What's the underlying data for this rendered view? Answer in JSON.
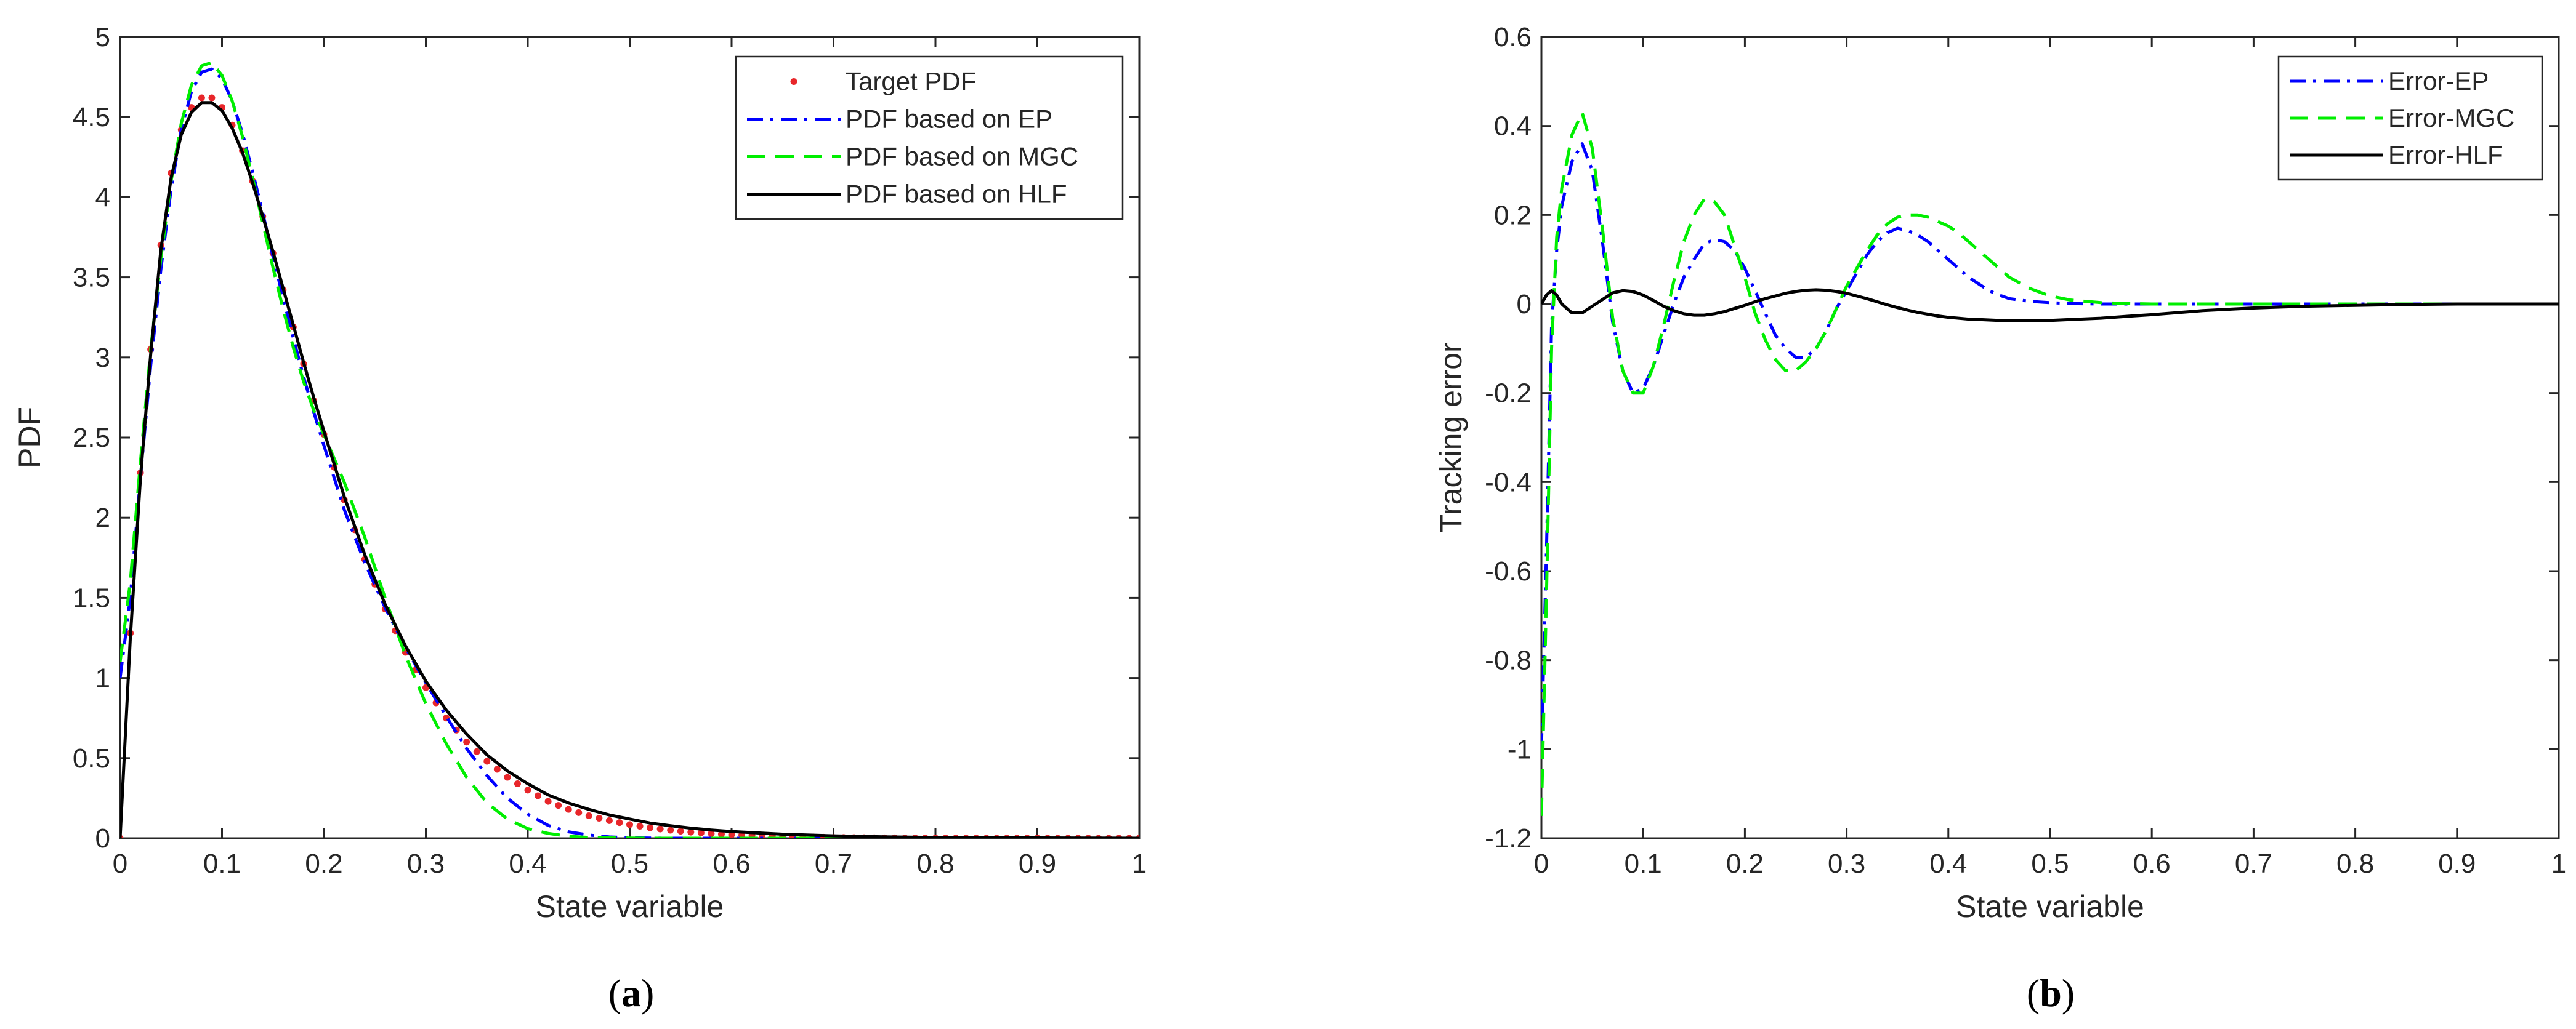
{
  "chart_data": [
    {
      "panel": "(a)",
      "type": "line",
      "title": "",
      "xlabel": "State variable",
      "ylabel": "PDF",
      "xlim": [
        0,
        1
      ],
      "ylim": [
        0,
        5
      ],
      "xticks": [
        0,
        0.1,
        0.2,
        0.3,
        0.4,
        0.5,
        0.6,
        0.7,
        0.8,
        0.9,
        1
      ],
      "yticks": [
        0,
        0.5,
        1,
        1.5,
        2,
        2.5,
        3,
        3.5,
        4,
        4.5,
        5
      ],
      "grid": false,
      "legend_position": "top-right",
      "x": [
        0,
        0.01,
        0.02,
        0.03,
        0.04,
        0.05,
        0.06,
        0.07,
        0.08,
        0.09,
        0.1,
        0.11,
        0.12,
        0.13,
        0.14,
        0.15,
        0.16,
        0.17,
        0.18,
        0.19,
        0.2,
        0.22,
        0.24,
        0.26,
        0.28,
        0.3,
        0.32,
        0.34,
        0.36,
        0.38,
        0.4,
        0.42,
        0.44,
        0.46,
        0.48,
        0.5,
        0.52,
        0.54,
        0.56,
        0.58,
        0.6,
        0.65,
        0.7,
        0.75,
        0.8,
        0.85,
        0.9,
        0.95,
        1.0
      ],
      "series": [
        {
          "name": "Target PDF",
          "style": "dots",
          "color": "#e8262a",
          "values": [
            0,
            1.28,
            2.28,
            3.05,
            3.7,
            4.15,
            4.42,
            4.56,
            4.62,
            4.62,
            4.56,
            4.45,
            4.29,
            4.1,
            3.88,
            3.65,
            3.42,
            3.19,
            2.96,
            2.73,
            2.52,
            2.11,
            1.74,
            1.43,
            1.16,
            0.94,
            0.75,
            0.6,
            0.48,
            0.38,
            0.3,
            0.23,
            0.18,
            0.14,
            0.11,
            0.085,
            0.065,
            0.05,
            0.038,
            0.029,
            0.022,
            0.011,
            0.005,
            0.0025,
            0.0012,
            0.0006,
            0.0003,
            0.0001,
            0
          ]
        },
        {
          "name": "PDF based on EP",
          "style": "dashdot",
          "color": "#0000ff",
          "values": [
            1.0,
            1.5,
            2.25,
            2.95,
            3.55,
            4.05,
            4.42,
            4.66,
            4.78,
            4.8,
            4.74,
            4.6,
            4.4,
            4.16,
            3.9,
            3.63,
            3.37,
            3.12,
            2.88,
            2.66,
            2.45,
            2.05,
            1.72,
            1.44,
            1.19,
            0.97,
            0.76,
            0.56,
            0.39,
            0.25,
            0.15,
            0.08,
            0.04,
            0.02,
            0.008,
            0.003,
            0.001,
            0,
            0,
            0,
            0,
            0,
            0,
            0,
            0,
            0,
            0,
            0,
            0
          ]
        },
        {
          "name": "PDF based on MGC",
          "style": "dashed",
          "color": "#00ee00",
          "values": [
            1.1,
            1.6,
            2.35,
            3.05,
            3.62,
            4.1,
            4.46,
            4.7,
            4.82,
            4.84,
            4.76,
            4.6,
            4.38,
            4.12,
            3.84,
            3.56,
            3.3,
            3.06,
            2.85,
            2.67,
            2.52,
            2.22,
            1.88,
            1.5,
            1.14,
            0.84,
            0.59,
            0.38,
            0.22,
            0.12,
            0.06,
            0.03,
            0.012,
            0.005,
            0.002,
            0.001,
            0,
            0,
            0,
            0,
            0,
            0,
            0,
            0,
            0,
            0,
            0,
            0,
            0
          ]
        },
        {
          "name": "PDF based on HLF",
          "style": "solid",
          "color": "#000000",
          "values": [
            0,
            1.25,
            2.25,
            3.02,
            3.67,
            4.12,
            4.39,
            4.53,
            4.59,
            4.59,
            4.54,
            4.43,
            4.28,
            4.09,
            3.88,
            3.66,
            3.43,
            3.2,
            2.97,
            2.75,
            2.54,
            2.13,
            1.77,
            1.46,
            1.2,
            0.98,
            0.8,
            0.65,
            0.52,
            0.42,
            0.34,
            0.27,
            0.22,
            0.18,
            0.145,
            0.12,
            0.095,
            0.078,
            0.063,
            0.051,
            0.042,
            0.025,
            0.015,
            0.009,
            0.005,
            0.003,
            0.002,
            0.001,
            0
          ]
        }
      ]
    },
    {
      "panel": "(b)",
      "type": "line",
      "title": "",
      "xlabel": "State variable",
      "ylabel": "Tracking error",
      "xlim": [
        0,
        1
      ],
      "ylim": [
        -1.2,
        0.6
      ],
      "xticks": [
        0,
        0.1,
        0.2,
        0.3,
        0.4,
        0.5,
        0.6,
        0.7,
        0.8,
        0.9,
        1
      ],
      "yticks": [
        -1.2,
        -1,
        -0.8,
        -0.6,
        -0.4,
        -0.2,
        0,
        0.2,
        0.4,
        0.6
      ],
      "grid": false,
      "legend_position": "top-right",
      "x": [
        0,
        0.005,
        0.01,
        0.015,
        0.02,
        0.03,
        0.04,
        0.05,
        0.06,
        0.07,
        0.08,
        0.09,
        0.1,
        0.11,
        0.12,
        0.13,
        0.14,
        0.15,
        0.16,
        0.17,
        0.18,
        0.19,
        0.2,
        0.21,
        0.22,
        0.23,
        0.24,
        0.25,
        0.26,
        0.27,
        0.28,
        0.29,
        0.3,
        0.31,
        0.32,
        0.33,
        0.34,
        0.35,
        0.36,
        0.37,
        0.38,
        0.39,
        0.4,
        0.41,
        0.42,
        0.43,
        0.44,
        0.45,
        0.46,
        0.48,
        0.5,
        0.52,
        0.55,
        0.58,
        0.6,
        0.65,
        0.7,
        0.75,
        0.8,
        0.85,
        0.9,
        0.95,
        1.0
      ],
      "series": [
        {
          "name": "Error-EP",
          "style": "dashdot",
          "color": "#0000ff",
          "values": [
            -1.0,
            -0.55,
            -0.05,
            0.12,
            0.22,
            0.32,
            0.36,
            0.3,
            0.14,
            -0.04,
            -0.15,
            -0.2,
            -0.19,
            -0.14,
            -0.07,
            0.0,
            0.06,
            0.1,
            0.135,
            0.145,
            0.14,
            0.12,
            0.08,
            0.03,
            -0.02,
            -0.07,
            -0.1,
            -0.12,
            -0.12,
            -0.1,
            -0.06,
            -0.01,
            0.03,
            0.07,
            0.11,
            0.14,
            0.16,
            0.17,
            0.165,
            0.155,
            0.14,
            0.12,
            0.1,
            0.08,
            0.06,
            0.045,
            0.03,
            0.02,
            0.012,
            0.006,
            0.003,
            0.001,
            0,
            0,
            0,
            0,
            0,
            0,
            0,
            0,
            0,
            0,
            0
          ]
        },
        {
          "name": "Error-MGC",
          "style": "dashed",
          "color": "#00ee00",
          "values": [
            -1.15,
            -0.65,
            -0.1,
            0.15,
            0.26,
            0.38,
            0.43,
            0.35,
            0.17,
            -0.03,
            -0.15,
            -0.2,
            -0.2,
            -0.14,
            -0.05,
            0.05,
            0.14,
            0.2,
            0.235,
            0.23,
            0.2,
            0.13,
            0.06,
            -0.02,
            -0.08,
            -0.125,
            -0.15,
            -0.15,
            -0.13,
            -0.1,
            -0.06,
            -0.01,
            0.04,
            0.08,
            0.12,
            0.155,
            0.18,
            0.195,
            0.2,
            0.2,
            0.195,
            0.185,
            0.175,
            0.16,
            0.14,
            0.12,
            0.1,
            0.08,
            0.06,
            0.035,
            0.018,
            0.009,
            0.003,
            0.001,
            0,
            0,
            0,
            0,
            0,
            0,
            0,
            0,
            0
          ]
        },
        {
          "name": "Error-HLF",
          "style": "solid",
          "color": "#000000",
          "values": [
            0,
            0.02,
            0.03,
            0.02,
            0.0,
            -0.02,
            -0.02,
            -0.005,
            0.01,
            0.025,
            0.03,
            0.028,
            0.02,
            0.008,
            -0.005,
            -0.015,
            -0.022,
            -0.025,
            -0.025,
            -0.022,
            -0.017,
            -0.01,
            -0.003,
            0.005,
            0.012,
            0.018,
            0.024,
            0.028,
            0.031,
            0.032,
            0.031,
            0.028,
            0.024,
            0.018,
            0.012,
            0.005,
            -0.002,
            -0.008,
            -0.014,
            -0.019,
            -0.023,
            -0.027,
            -0.03,
            -0.032,
            -0.034,
            -0.035,
            -0.036,
            -0.037,
            -0.038,
            -0.038,
            -0.037,
            -0.035,
            -0.032,
            -0.027,
            -0.024,
            -0.015,
            -0.009,
            -0.005,
            -0.003,
            -0.001,
            0,
            0,
            0
          ]
        }
      ]
    }
  ],
  "captions": [
    {
      "open": "(",
      "letter": "a",
      "close": ")"
    },
    {
      "open": "(",
      "letter": "b",
      "close": ")"
    }
  ]
}
